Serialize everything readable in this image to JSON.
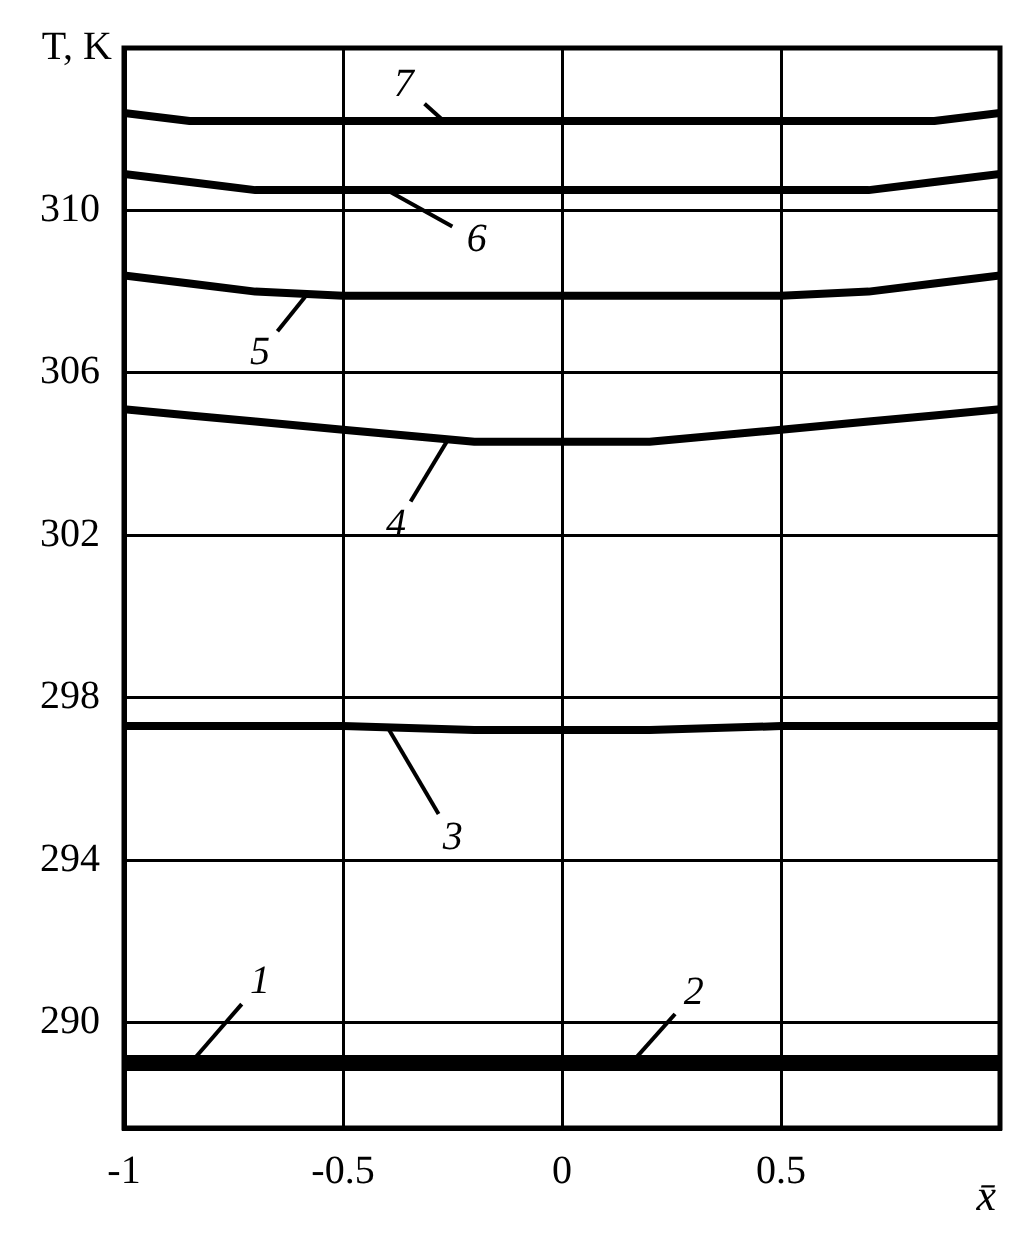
{
  "chart_data": {
    "type": "line",
    "xlabel": "x̄",
    "ylabel": "T, K",
    "x": [
      -1,
      -0.85,
      -0.7,
      -0.5,
      -0.2,
      0,
      0.2,
      0.5,
      0.7,
      0.85,
      1
    ],
    "series": [
      {
        "color": "#000000",
        "values": [
          289.1,
          289.1,
          289.1,
          289.1,
          289.1,
          289.1,
          289.1,
          289.1,
          289.1,
          289.1,
          289.1
        ]
      },
      {
        "color": "#000000",
        "values": [
          288.9,
          288.9,
          288.9,
          288.9,
          288.9,
          288.9,
          288.9,
          288.9,
          288.9,
          288.9,
          288.9
        ]
      },
      {
        "color": "#000000",
        "values": [
          297.3,
          297.3,
          297.3,
          297.3,
          297.2,
          297.2,
          297.2,
          297.3,
          297.3,
          297.3,
          297.3
        ]
      },
      {
        "color": "#000000",
        "values": [
          305.1,
          304.95,
          304.8,
          304.6,
          304.3,
          304.3,
          304.3,
          304.6,
          304.8,
          304.95,
          305.1
        ]
      },
      {
        "color": "#000000",
        "values": [
          308.4,
          308.2,
          308.0,
          307.9,
          307.9,
          307.9,
          307.9,
          307.9,
          308.0,
          308.2,
          308.4
        ]
      },
      {
        "color": "#000000",
        "values": [
          310.9,
          310.7,
          310.5,
          310.5,
          310.5,
          310.5,
          310.5,
          310.5,
          310.5,
          310.7,
          310.9
        ]
      },
      {
        "color": "#000000",
        "values": [
          312.4,
          312.2,
          312.2,
          312.2,
          312.2,
          312.2,
          312.2,
          312.2,
          312.2,
          312.2,
          312.4
        ]
      }
    ],
    "annotations": [
      {
        "text": "1",
        "x": -0.84,
        "y": 289.1
      },
      {
        "text": "2",
        "x": 0.15,
        "y": 288.9
      },
      {
        "text": "3",
        "x": -0.4,
        "y": 297.3
      },
      {
        "text": "4",
        "x": -0.26,
        "y": 304.36
      },
      {
        "text": "5",
        "x": -0.58,
        "y": 307.96
      },
      {
        "text": "6",
        "x": -0.4,
        "y": 310.5
      },
      {
        "text": "7",
        "x": -0.27,
        "y": 312.2
      }
    ],
    "xlim": [
      -1,
      1
    ],
    "xticks": [
      -1,
      -0.5,
      0,
      0.5,
      {
        "value": 1,
        "label": null
      }
    ],
    "ylim": [
      287.4,
      314
    ],
    "yticks": [
      290,
      294,
      298,
      302,
      306,
      310
    ],
    "grid": true,
    "marker": "none",
    "line_style": "solid"
  }
}
